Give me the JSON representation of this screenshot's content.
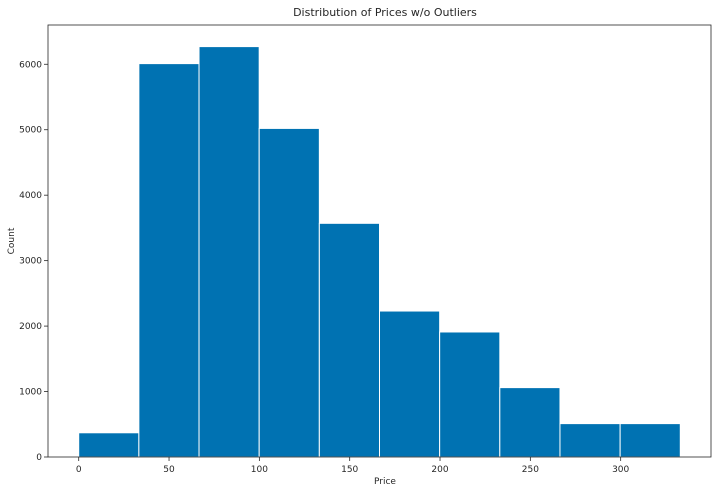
{
  "chart_data": {
    "type": "bar",
    "title": "Distribution of Prices w/o Outliers",
    "xlabel": "Price",
    "ylabel": "Count",
    "bin_edges": [
      0,
      33.3,
      66.6,
      99.9,
      133.2,
      166.5,
      199.8,
      233.1,
      266.4,
      299.7,
      333
    ],
    "values": [
      370,
      6010,
      6270,
      5020,
      3570,
      2230,
      1910,
      1060,
      510,
      510
    ],
    "xlim": [
      -17,
      350
    ],
    "ylim": [
      0,
      6600
    ],
    "xticks": [
      0,
      50,
      100,
      150,
      200,
      250,
      300
    ],
    "yticks": [
      0,
      1000,
      2000,
      3000,
      4000,
      5000,
      6000
    ],
    "grid": false,
    "bar_color": "#0072b2",
    "edge_color": "#ffffff"
  }
}
